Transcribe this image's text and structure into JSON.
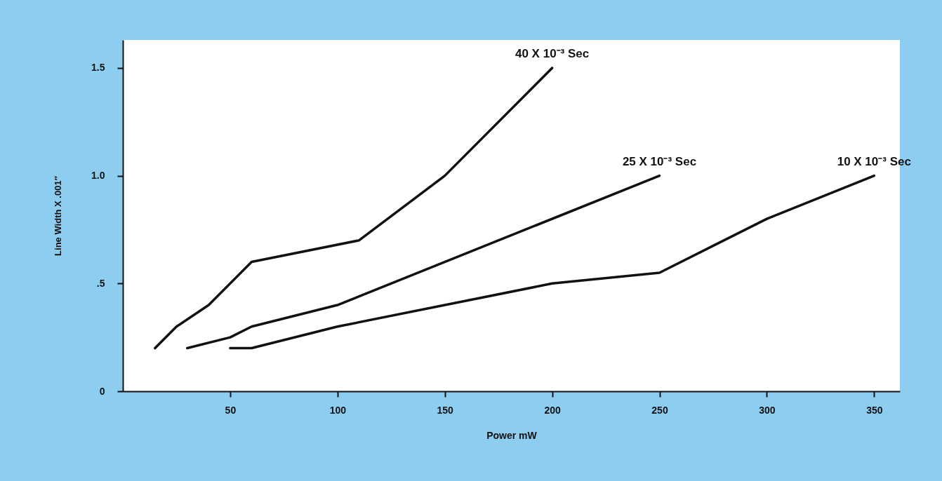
{
  "chart_data": {
    "type": "line",
    "xlabel": "Power mW",
    "ylabel": "Line Width X .001″",
    "xlim": [
      0,
      362
    ],
    "xticks": [
      50,
      100,
      150,
      200,
      250,
      300,
      350
    ],
    "ylim": [
      0,
      1.63
    ],
    "yticks": [
      0,
      {
        "value": 0.5,
        "label": ".5"
      },
      {
        "value": 1.0,
        "label": "1.0"
      },
      {
        "value": 1.5,
        "label": "1.5"
      }
    ],
    "grid": false,
    "marker": "none",
    "line_style": "solid",
    "series": [
      {
        "name": "40 X 10⁻³ Sec",
        "color": "#111111",
        "x": [
          15,
          25,
          40,
          60,
          110,
          150,
          200
        ],
        "values": [
          0.2,
          0.3,
          0.4,
          0.6,
          0.7,
          1.0,
          1.5
        ]
      },
      {
        "name": "25 X 10⁻³ Sec",
        "color": "#111111",
        "x": [
          30,
          50,
          60,
          100,
          250
        ],
        "values": [
          0.2,
          0.25,
          0.3,
          0.4,
          1.0
        ]
      },
      {
        "name": "10 X 10⁻³ Sec",
        "color": "#111111",
        "x": [
          50,
          60,
          100,
          200,
          250,
          300,
          350
        ],
        "values": [
          0.2,
          0.2,
          0.3,
          0.5,
          0.55,
          0.8,
          1.0
        ]
      }
    ]
  }
}
